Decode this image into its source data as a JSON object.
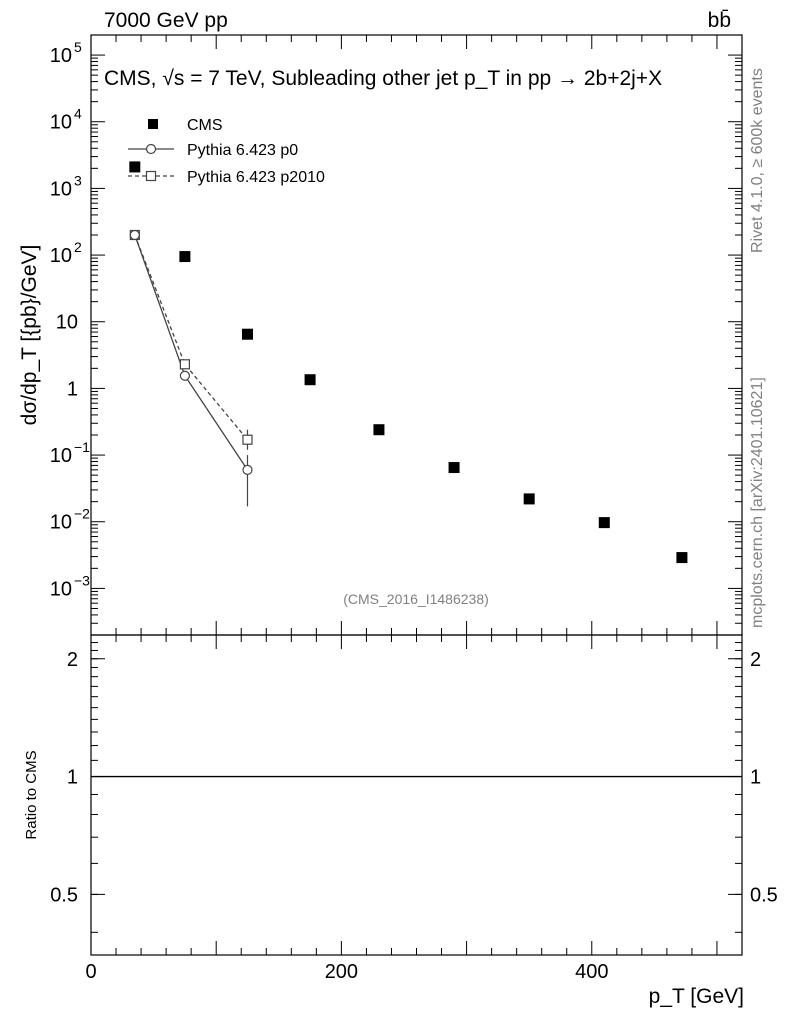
{
  "header": {
    "left": "7000 GeV pp",
    "right": "bb̄"
  },
  "side_labels": {
    "rivet": "Rivet 4.1.0, ≥ 600k events",
    "mcplots": "mcplots.cern.ch [arXiv:2401.10621]"
  },
  "chart_data": {
    "type": "scatter",
    "title": "CMS, √s = 7 TeV, Subleading other jet p_T in pp → 2b+2j+X",
    "analysis_id": "(CMS_2016_I1486238)",
    "xlabel": "p_T [GeV]",
    "ylabel": "dσ/dp_T [{pb}/GeV]",
    "ratio_ylabel": "Ratio to CMS",
    "xlim": [
      0,
      520
    ],
    "ylim": [
      0.0002,
      200000
    ],
    "yscale": "log",
    "ratio_ylim": [
      0.35,
      2.3
    ],
    "x_ticks": [
      0,
      200,
      400
    ],
    "y_ticks": [
      {
        "value": 100000,
        "base": "10",
        "exp": "5"
      },
      {
        "value": 10000,
        "base": "10",
        "exp": "4"
      },
      {
        "value": 1000,
        "base": "10",
        "exp": "3"
      },
      {
        "value": 100,
        "base": "10",
        "exp": "2"
      },
      {
        "value": 10,
        "base": "10",
        "exp": ""
      },
      {
        "value": 1,
        "base": "1",
        "exp": ""
      },
      {
        "value": 0.1,
        "base": "10",
        "exp": "−1"
      },
      {
        "value": 0.01,
        "base": "10",
        "exp": "−2"
      },
      {
        "value": 0.001,
        "base": "10",
        "exp": "−3"
      }
    ],
    "ratio_ticks": [
      {
        "value": 2,
        "label": "2"
      },
      {
        "value": 1,
        "label": "1"
      },
      {
        "value": 0.5,
        "label": "0.5"
      }
    ],
    "legend": {
      "placement": "top-left",
      "entries": [
        "CMS",
        "Pythia 6.423 p0",
        "Pythia 6.423 p2010"
      ]
    },
    "series": [
      {
        "name": "CMS",
        "marker": "filled-square",
        "x": [
          35,
          75,
          125,
          175,
          230,
          290,
          350,
          410,
          472
        ],
        "y": [
          2100,
          95,
          6.5,
          1.35,
          0.24,
          0.065,
          0.022,
          0.0097,
          0.0029
        ]
      },
      {
        "name": "Pythia 6.423 p0",
        "marker": "open-circle",
        "line": "solid",
        "x": [
          35,
          75,
          125
        ],
        "y": [
          200,
          1.55,
          0.06
        ],
        "yerr_low": [
          0,
          0,
          0.043
        ],
        "yerr_high": [
          0,
          0,
          0.04
        ]
      },
      {
        "name": "Pythia 6.423 p2010",
        "marker": "open-square",
        "line": "dashed",
        "x": [
          35,
          75,
          125
        ],
        "y": [
          200,
          2.3,
          0.17
        ],
        "yerr_low": [
          0,
          0,
          0.05
        ],
        "yerr_high": [
          0,
          0,
          0.07
        ]
      }
    ]
  }
}
